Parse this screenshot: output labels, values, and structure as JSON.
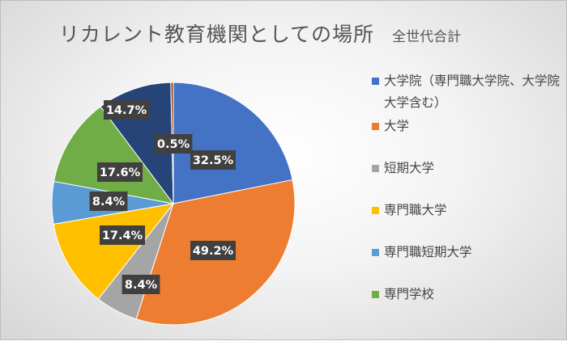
{
  "title": "リカレント教育機関としての場所",
  "subtitle": "全世代合計",
  "chart_data": {
    "type": "pie",
    "title": "リカレント教育機関としての場所",
    "subtitle": "全世代合計",
    "legend_position": "right",
    "slices": [
      {
        "label": "大学院（専門職大学院、大学院大学含む）",
        "value": 32.5,
        "display": "32.5%",
        "color": "#4472c4"
      },
      {
        "label": "大学",
        "value": 49.2,
        "display": "49.2%",
        "color": "#ed7d31"
      },
      {
        "label": "短期大学",
        "value": 8.4,
        "display": "8.4%",
        "color": "#a5a5a5"
      },
      {
        "label": "専門職大学",
        "value": 17.4,
        "display": "17.4%",
        "color": "#ffc000"
      },
      {
        "label": "専門職短期大学",
        "value": 8.4,
        "display": "8.4%",
        "color": "#5b9bd5"
      },
      {
        "label": "専門学校",
        "value": 17.6,
        "display": "17.6%",
        "color": "#70ad47"
      },
      {
        "label": "",
        "value": 14.7,
        "display": "14.7%",
        "color": "#264478"
      },
      {
        "label": "",
        "value": 0.5,
        "display": "0.5%",
        "color": "#9e480e"
      }
    ]
  }
}
